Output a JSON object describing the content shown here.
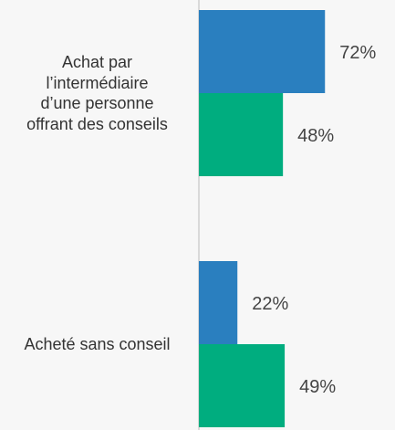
{
  "chart_data": {
    "type": "bar",
    "orientation": "horizontal",
    "categories": [
      "Achat par\nl’intermédiaire\nd’une personne\noffrant des conseils",
      "Acheté sans conseil"
    ],
    "series": [
      {
        "color": "#2a7fbf",
        "values": [
          72,
          22
        ],
        "value_labels": [
          "72%",
          "22%"
        ]
      },
      {
        "color": "#00ad7f",
        "values": [
          48,
          49
        ],
        "value_labels": [
          "48%",
          "49%"
        ]
      }
    ],
    "xlim": [
      0,
      100
    ]
  }
}
